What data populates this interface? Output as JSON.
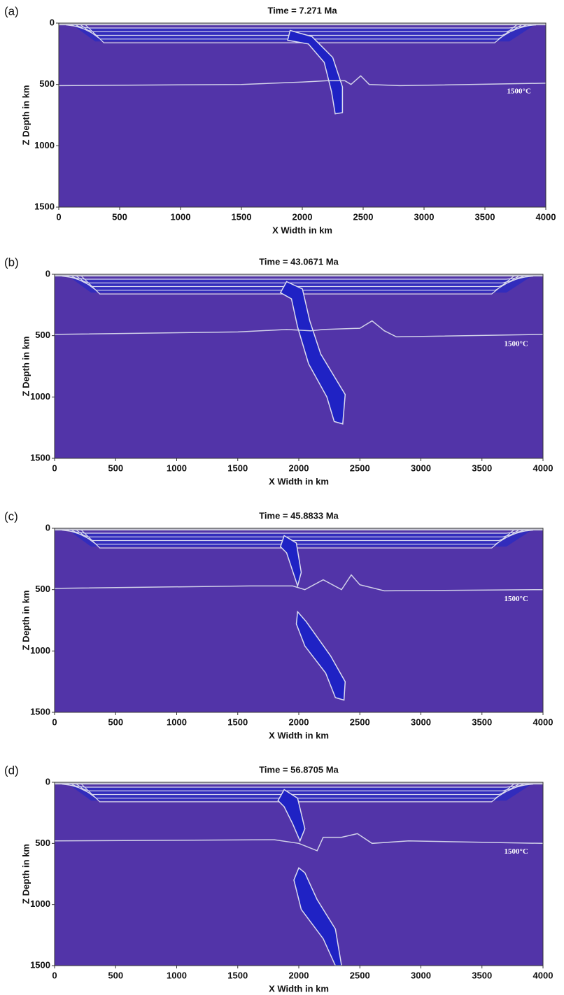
{
  "chart_data": [
    {
      "type": "field",
      "panel_label": "(a)",
      "title": "Time = 7.271 Ma",
      "x_label": "X Width in km",
      "y_label": "Z Depth in km",
      "annotation": "1500°C",
      "xlim": [
        0,
        4000
      ],
      "ylim": [
        1500,
        0
      ],
      "xticks": [
        0,
        500,
        1000,
        1500,
        2000,
        2500,
        3000,
        3500,
        4000
      ],
      "yticks": [
        0,
        500,
        1000,
        1500
      ],
      "color": "#5234a8"
    },
    {
      "type": "field",
      "panel_label": "(b)",
      "title": "Time = 43.0671 Ma",
      "x_label": "X Width in km",
      "y_label": "Z Depth in km",
      "annotation": "1500°C",
      "xlim": [
        0,
        4000
      ],
      "ylim": [
        1500,
        0
      ],
      "xticks": [
        0,
        500,
        1000,
        1500,
        2000,
        2500,
        3000,
        3500,
        4000
      ],
      "yticks": [
        0,
        500,
        1000,
        1500
      ],
      "color": "#5234a8"
    },
    {
      "type": "field",
      "panel_label": "(c)",
      "title": "Time = 45.8833 Ma",
      "x_label": "X Width in km",
      "y_label": "Z Depth in km",
      "annotation": "1500°C",
      "xlim": [
        0,
        4000
      ],
      "ylim": [
        1500,
        0
      ],
      "xticks": [
        0,
        500,
        1000,
        1500,
        2000,
        2500,
        3000,
        3500,
        4000
      ],
      "yticks": [
        0,
        500,
        1000,
        1500
      ],
      "color": "#5234a8"
    },
    {
      "type": "field",
      "panel_label": "(d)",
      "title": "Time = 56.8705 Ma",
      "x_label": "X Width in km",
      "y_label": "Z Depth in km",
      "annotation": "1500°C",
      "xlim": [
        0,
        4000
      ],
      "ylim": [
        1500,
        0
      ],
      "xticks": [
        0,
        500,
        1000,
        1500,
        2000,
        2500,
        3000,
        3500,
        4000
      ],
      "yticks": [
        0,
        500,
        1000,
        1500
      ],
      "color": "#5234a8"
    }
  ]
}
